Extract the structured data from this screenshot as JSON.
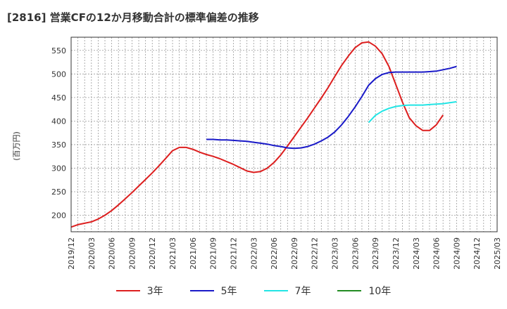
{
  "chart_data": {
    "type": "line",
    "title": "[2816]  営業CFの12か月移動合計の標準偏差の推移",
    "ylabel": "(百万円)",
    "xlabel": "",
    "ylim": [
      165,
      578
    ],
    "yticks": [
      200,
      250,
      300,
      350,
      400,
      450,
      500,
      550
    ],
    "x_tick_labels": [
      "2019/12",
      "2020/03",
      "2020/06",
      "2020/09",
      "2020/12",
      "2021/03",
      "2021/06",
      "2021/09",
      "2021/12",
      "2022/03",
      "2022/06",
      "2022/09",
      "2022/12",
      "2023/03",
      "2023/06",
      "2023/09",
      "2023/12",
      "2024/03",
      "2024/06",
      "2024/09",
      "2024/12",
      "2025/03"
    ],
    "grid": true,
    "legend_position": "bottom",
    "series": [
      {
        "name": "3年",
        "color": "#dd1f1f",
        "x": [
          "2019/12",
          "2020/01",
          "2020/02",
          "2020/03",
          "2020/04",
          "2020/05",
          "2020/06",
          "2020/07",
          "2020/08",
          "2020/09",
          "2020/10",
          "2020/11",
          "2020/12",
          "2021/01",
          "2021/02",
          "2021/03",
          "2021/04",
          "2021/05",
          "2021/06",
          "2021/07",
          "2021/08",
          "2021/09",
          "2021/10",
          "2021/11",
          "2021/12",
          "2022/01",
          "2022/02",
          "2022/03",
          "2022/04",
          "2022/05",
          "2022/06",
          "2022/07",
          "2022/08",
          "2022/09",
          "2022/10",
          "2022/11",
          "2022/12",
          "2023/01",
          "2023/02",
          "2023/03",
          "2023/04",
          "2023/05",
          "2023/06",
          "2023/07",
          "2023/08",
          "2023/09",
          "2023/10",
          "2023/11",
          "2023/12",
          "2024/01",
          "2024/02",
          "2024/03",
          "2024/04",
          "2024/05",
          "2024/06",
          "2024/07",
          "2024/08",
          "2024/09"
        ],
        "values": [
          175,
          180,
          183,
          186,
          192,
          200,
          210,
          222,
          235,
          248,
          262,
          276,
          290,
          305,
          321,
          337,
          344,
          344,
          340,
          334,
          329,
          325,
          320,
          314,
          308,
          301,
          294,
          291,
          293,
          300,
          312,
          328,
          347,
          367,
          387,
          407,
          428,
          449,
          471,
          495,
          518,
          538,
          556,
          566,
          568,
          559,
          543,
          516,
          478,
          440,
          407,
          390,
          380,
          380,
          392,
          413,
          null,
          null
        ]
      },
      {
        "name": "5年",
        "color": "#1a1ac8",
        "x": [
          "2021/08",
          "2021/09",
          "2021/10",
          "2021/11",
          "2021/12",
          "2022/01",
          "2022/02",
          "2022/03",
          "2022/04",
          "2022/05",
          "2022/06",
          "2022/07",
          "2022/08",
          "2022/09",
          "2022/10",
          "2022/11",
          "2022/12",
          "2023/01",
          "2023/02",
          "2023/03",
          "2023/04",
          "2023/05",
          "2023/06",
          "2023/07",
          "2023/08",
          "2023/09",
          "2023/10",
          "2023/11",
          "2023/12",
          "2024/01",
          "2024/02",
          "2024/03",
          "2024/04",
          "2024/05",
          "2024/06",
          "2024/07",
          "2024/08",
          "2024/09"
        ],
        "values": [
          361,
          361,
          360,
          360,
          359,
          358,
          357,
          355,
          353,
          351,
          348,
          346,
          343,
          342,
          343,
          346,
          351,
          358,
          366,
          377,
          392,
          410,
          430,
          452,
          476,
          490,
          499,
          503,
          504,
          504,
          504,
          504,
          504,
          505,
          506,
          509,
          512,
          516
        ]
      },
      {
        "name": "7年",
        "color": "#22e5e5",
        "x": [
          "2023/08",
          "2023/09",
          "2023/10",
          "2023/11",
          "2023/12",
          "2024/01",
          "2024/02",
          "2024/03",
          "2024/04",
          "2024/05",
          "2024/06",
          "2024/07",
          "2024/08",
          "2024/09"
        ],
        "values": [
          397,
          412,
          421,
          427,
          431,
          433,
          434,
          434,
          434,
          435,
          436,
          437,
          439,
          441
        ]
      },
      {
        "name": "10年",
        "color": "#228b22",
        "x": [],
        "values": []
      }
    ]
  }
}
